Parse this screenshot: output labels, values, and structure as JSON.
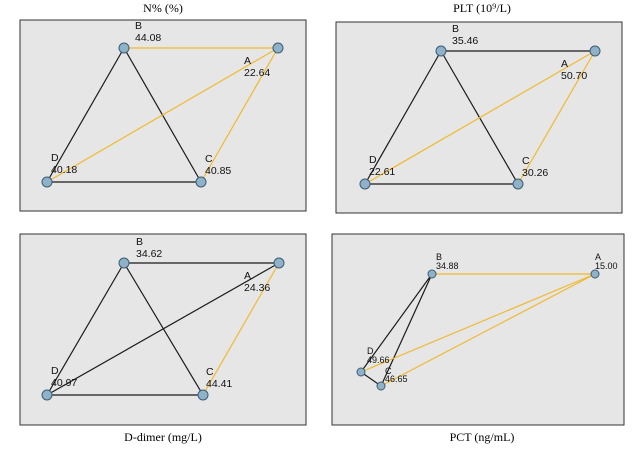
{
  "colors": {
    "panel_bg": "#e6e6e6",
    "edge_black": "#1a1a1a",
    "edge_yellow": "#f0b92e",
    "node_fill": "#8fb2c9"
  },
  "panels": [
    {
      "title": "N% (%)",
      "nodes": {
        "A": {
          "letter": "A",
          "value": "22.64"
        },
        "B": {
          "letter": "B",
          "value": "44.08"
        },
        "C": {
          "letter": "C",
          "value": "40.85"
        },
        "D": {
          "letter": "D",
          "value": "40.18"
        }
      }
    },
    {
      "title": "PLT (10⁹/L)",
      "nodes": {
        "A": {
          "letter": "A",
          "value": "50.70"
        },
        "B": {
          "letter": "B",
          "value": "35.46"
        },
        "C": {
          "letter": "C",
          "value": "30.26"
        },
        "D": {
          "letter": "D",
          "value": "22.61"
        }
      }
    },
    {
      "title": "D-dimer (mg/L)",
      "nodes": {
        "A": {
          "letter": "A",
          "value": "24.36"
        },
        "B": {
          "letter": "B",
          "value": "34.62"
        },
        "C": {
          "letter": "C",
          "value": "44.41"
        },
        "D": {
          "letter": "D",
          "value": "40.97"
        }
      }
    },
    {
      "title": "PCT (ng/mL)",
      "nodes": {
        "A": {
          "letter": "A",
          "value": "15.00"
        },
        "B": {
          "letter": "B",
          "value": "34.88"
        },
        "C": {
          "letter": "C",
          "value": "46.65"
        },
        "D": {
          "letter": "D",
          "value": "49.66"
        }
      }
    }
  ]
}
